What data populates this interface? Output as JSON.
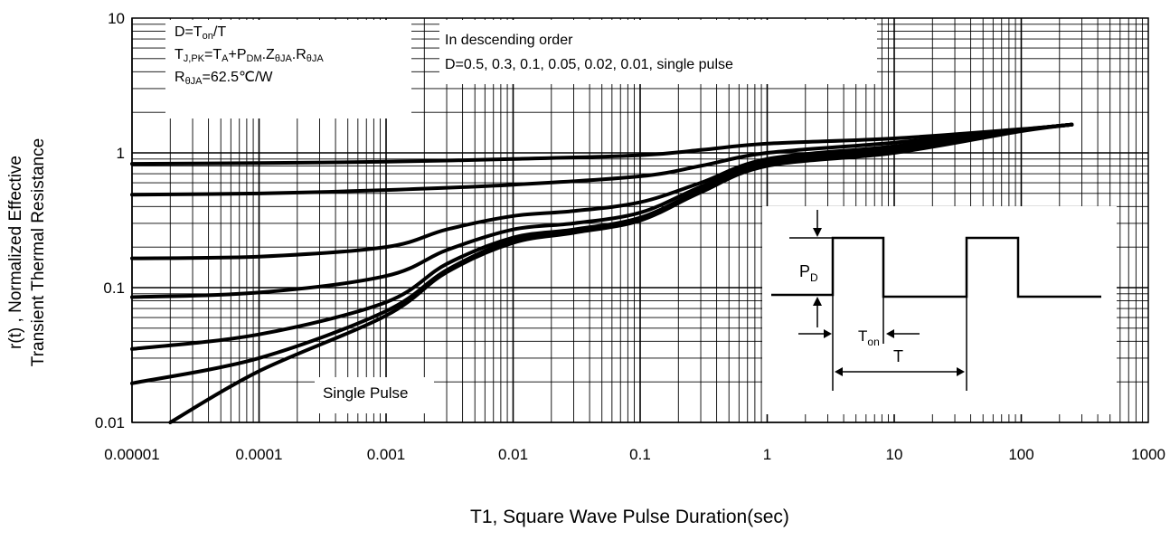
{
  "chart_data": {
    "type": "line",
    "title": "",
    "xlabel": "T1, Square Wave Pulse Duration(sec)",
    "ylabel_lines": [
      "r(t) , Normalized Effective",
      "Transient Thermal Resistance"
    ],
    "x_scale": "log",
    "y_scale": "log",
    "xlim": [
      1e-05,
      1000
    ],
    "ylim": [
      0.01,
      10
    ],
    "x_ticks": [
      "0.00001",
      "0.0001",
      "0.001",
      "0.01",
      "0.1",
      "1",
      "10",
      "100",
      "1000"
    ],
    "y_ticks": [
      "0.01",
      "0.1",
      "1",
      "10"
    ],
    "grid": true,
    "series": [
      {
        "label": "0.5",
        "points": [
          [
            1e-05,
            0.83
          ],
          [
            0.0001,
            0.84
          ],
          [
            0.001,
            0.86
          ],
          [
            0.01,
            0.9
          ],
          [
            0.1,
            0.96
          ],
          [
            0.3,
            1.05
          ],
          [
            1,
            1.17
          ],
          [
            10,
            1.28
          ],
          [
            100,
            1.5
          ],
          [
            250,
            1.62
          ]
        ]
      },
      {
        "label": "0.3",
        "points": [
          [
            1e-05,
            0.49
          ],
          [
            0.0001,
            0.5
          ],
          [
            0.001,
            0.53
          ],
          [
            0.01,
            0.58
          ],
          [
            0.1,
            0.67
          ],
          [
            0.3,
            0.8
          ],
          [
            1,
            1.0
          ],
          [
            10,
            1.19
          ],
          [
            100,
            1.49
          ],
          [
            250,
            1.62
          ]
        ]
      },
      {
        "label": "0.1",
        "points": [
          [
            1e-05,
            0.165
          ],
          [
            0.0001,
            0.17
          ],
          [
            0.001,
            0.2
          ],
          [
            0.003,
            0.27
          ],
          [
            0.01,
            0.34
          ],
          [
            0.03,
            0.37
          ],
          [
            0.1,
            0.43
          ],
          [
            0.3,
            0.6
          ],
          [
            1,
            0.9
          ],
          [
            10,
            1.12
          ],
          [
            100,
            1.48
          ],
          [
            250,
            1.62
          ]
        ]
      },
      {
        "label": "0.05",
        "points": [
          [
            1e-05,
            0.085
          ],
          [
            0.0001,
            0.092
          ],
          [
            0.001,
            0.122
          ],
          [
            0.003,
            0.19
          ],
          [
            0.01,
            0.27
          ],
          [
            0.03,
            0.3
          ],
          [
            0.1,
            0.36
          ],
          [
            0.3,
            0.56
          ],
          [
            1,
            0.86
          ],
          [
            10,
            1.08
          ],
          [
            100,
            1.47
          ],
          [
            250,
            1.62
          ]
        ]
      },
      {
        "label": "0.02",
        "points": [
          [
            1e-05,
            0.035
          ],
          [
            0.0001,
            0.045
          ],
          [
            0.001,
            0.078
          ],
          [
            0.003,
            0.15
          ],
          [
            0.01,
            0.235
          ],
          [
            0.03,
            0.27
          ],
          [
            0.1,
            0.33
          ],
          [
            0.3,
            0.53
          ],
          [
            1,
            0.83
          ],
          [
            10,
            1.05
          ],
          [
            100,
            1.47
          ],
          [
            250,
            1.62
          ]
        ]
      },
      {
        "label": "0.01",
        "points": [
          [
            1e-05,
            0.0195
          ],
          [
            0.0001,
            0.03
          ],
          [
            0.001,
            0.067
          ],
          [
            0.003,
            0.135
          ],
          [
            0.01,
            0.225
          ],
          [
            0.03,
            0.26
          ],
          [
            0.1,
            0.32
          ],
          [
            0.3,
            0.52
          ],
          [
            1,
            0.82
          ],
          [
            10,
            1.03
          ],
          [
            100,
            1.46
          ],
          [
            250,
            1.62
          ]
        ]
      },
      {
        "label": "single pulse",
        "points": [
          [
            2e-05,
            0.01
          ],
          [
            0.0001,
            0.024
          ],
          [
            0.001,
            0.062
          ],
          [
            0.003,
            0.13
          ],
          [
            0.01,
            0.215
          ],
          [
            0.03,
            0.255
          ],
          [
            0.1,
            0.315
          ],
          [
            0.3,
            0.51
          ],
          [
            1,
            0.8
          ],
          [
            10,
            1.0
          ],
          [
            100,
            1.45
          ],
          [
            250,
            1.62
          ]
        ]
      }
    ],
    "annotations": {
      "formula_lines": [
        {
          "base": "D=T",
          "sub": "on",
          "rest": "/T"
        },
        {
          "html_parts": [
            "T",
            "J,PK",
            "=T",
            "A",
            "+P",
            "DM",
            ".Z",
            "θJA",
            ".R",
            "θJA",
            ""
          ]
        },
        {
          "base": "R",
          "sub": "θJA",
          "rest": "=62.5℃/W"
        }
      ],
      "order_title": "In descending order",
      "order_values": "D=0.5, 0.3, 0.1, 0.05, 0.02, 0.01, single pulse",
      "single_pulse": "Single Pulse",
      "inset": {
        "pd_main": "P",
        "pd_sub": "D",
        "ton_main": "T",
        "ton_sub": "on",
        "period": "T"
      }
    }
  }
}
